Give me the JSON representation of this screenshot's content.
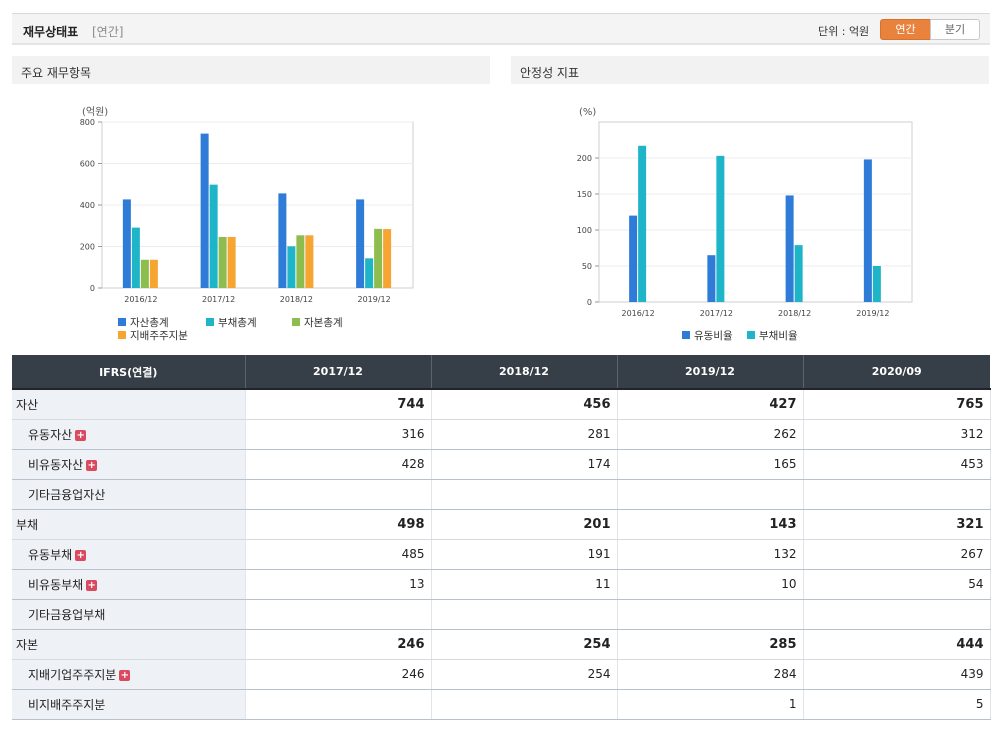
{
  "header": {
    "title": "재무상태표",
    "subtitle": "[연간]",
    "unit_label": "단위 : 억원",
    "toggle_annual": "연간",
    "toggle_quarter": "분기"
  },
  "panels": {
    "left_title": "주요 재무항목",
    "right_title": "안정성 지표"
  },
  "chart_data": [
    {
      "type": "bar",
      "ylabel": "(억원)",
      "ylim": [
        0,
        800
      ],
      "yticks": [
        "0",
        "200",
        "400",
        "600",
        "800"
      ],
      "categories": [
        "2016/12",
        "2017/12",
        "2018/12",
        "2019/12"
      ],
      "series": [
        {
          "name": "자산총계",
          "color": "#2f7bd8",
          "values": [
            427,
            744,
            456,
            427
          ]
        },
        {
          "name": "부채총계",
          "color": "#1fb5c9",
          "values": [
            291,
            498,
            201,
            143
          ]
        },
        {
          "name": "자본총계",
          "color": "#8dbd4e",
          "values": [
            136,
            246,
            254,
            285
          ]
        },
        {
          "name": "지배주주지분",
          "color": "#f6a532",
          "values": [
            136,
            246,
            254,
            284
          ]
        }
      ],
      "grid": true,
      "legend": "bottom"
    },
    {
      "type": "bar",
      "ylabel": "(%)",
      "ylim": [
        0,
        250
      ],
      "yticks": [
        "0",
        "50",
        "100",
        "150",
        "200"
      ],
      "categories": [
        "2016/12",
        "2017/12",
        "2018/12",
        "2019/12"
      ],
      "series": [
        {
          "name": "유동비율",
          "color": "#2f7bd8",
          "values": [
            120,
            65,
            148,
            198
          ]
        },
        {
          "name": "부채비율",
          "color": "#1fb5c9",
          "values": [
            217,
            203,
            79,
            50
          ]
        }
      ],
      "grid": true,
      "legend": "bottom"
    }
  ],
  "table": {
    "columns": [
      "IFRS(연결)",
      "2017/12",
      "2018/12",
      "2019/12",
      "2020/09"
    ],
    "rows": [
      {
        "label": "자산",
        "values": [
          "744",
          "456",
          "427",
          "765"
        ]
      },
      {
        "label": "유동자산",
        "values": [
          "316",
          "281",
          "262",
          "312"
        ]
      },
      {
        "label": "비유동자산",
        "values": [
          "428",
          "174",
          "165",
          "453"
        ]
      },
      {
        "label": "기타금융업자산",
        "values": [
          "",
          "",
          "",
          ""
        ]
      },
      {
        "label": "부채",
        "values": [
          "498",
          "201",
          "143",
          "321"
        ]
      },
      {
        "label": "유동부채",
        "values": [
          "485",
          "191",
          "132",
          "267"
        ]
      },
      {
        "label": "비유동부채",
        "values": [
          "13",
          "11",
          "10",
          "54"
        ]
      },
      {
        "label": "기타금융업부채",
        "values": [
          "",
          "",
          "",
          ""
        ]
      },
      {
        "label": "자본",
        "values": [
          "246",
          "254",
          "285",
          "444"
        ]
      },
      {
        "label": "지배기업주주지분",
        "values": [
          "246",
          "254",
          "284",
          "439"
        ]
      },
      {
        "label": "비지배주주지분",
        "values": [
          "",
          "",
          "1",
          "5"
        ]
      }
    ],
    "expand_icon": "plus-icon"
  }
}
